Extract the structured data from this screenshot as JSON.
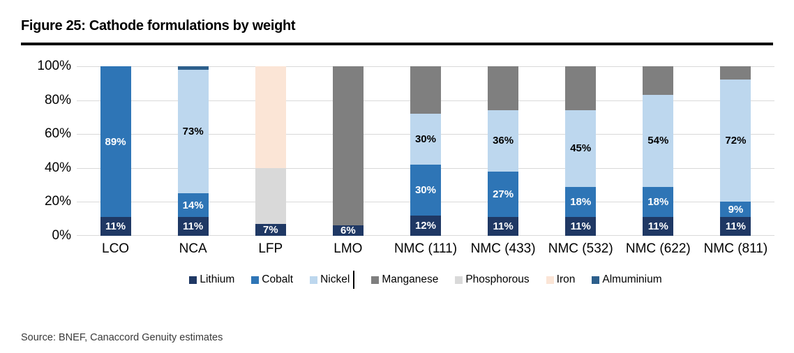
{
  "figure": {
    "title": "Figure 25: Cathode formulations by weight",
    "source": "Source: BNEF, Canaccord Genuity estimates"
  },
  "palette": {
    "lithium": "#1F3864",
    "cobalt": "#2E75B6",
    "nickel": "#BDD7EE",
    "manganese": "#7F7F7F",
    "phosphorous": "#D9D9D9",
    "iron": "#FBE5D6",
    "almuminium": "#2D5F8C",
    "gridline": "#D9D9D9",
    "title_rule": "#000000"
  },
  "legend": {
    "items": [
      {
        "label": "Lithium",
        "color": "lithium"
      },
      {
        "label": "Cobalt",
        "color": "cobalt"
      },
      {
        "label": "Nickel",
        "color": "nickel",
        "text_cursor_after": true
      },
      {
        "label": "Manganese",
        "color": "manganese"
      },
      {
        "label": "Phosphorous",
        "color": "phosphorous"
      },
      {
        "label": "Iron",
        "color": "iron"
      },
      {
        "label": "Almuminium",
        "color": "almuminium"
      }
    ]
  },
  "chart_data": {
    "type": "bar",
    "stacked": true,
    "unit": "%",
    "categories": [
      "LCO",
      "NCA",
      "LFP",
      "LMO",
      "NMC (111)",
      "NMC (433)",
      "NMC (532)",
      "NMC (622)",
      "NMC (811)"
    ],
    "series": [
      {
        "name": "Lithium",
        "color": "lithium",
        "values": [
          11,
          11,
          7,
          6,
          12,
          11,
          11,
          11,
          11
        ],
        "data_labels": true,
        "label_color": "#FFFFFF"
      },
      {
        "name": "Cobalt",
        "color": "cobalt",
        "values": [
          89,
          14,
          0,
          0,
          30,
          27,
          18,
          18,
          9
        ],
        "data_labels": true,
        "label_color": "#FFFFFF"
      },
      {
        "name": "Nickel",
        "color": "nickel",
        "values": [
          0,
          73,
          0,
          0,
          30,
          36,
          45,
          54,
          72
        ],
        "data_labels": true,
        "label_color": "#000000"
      },
      {
        "name": "Manganese",
        "color": "manganese",
        "values": [
          0,
          0,
          0,
          94,
          28,
          26,
          26,
          17,
          8
        ],
        "data_labels": false,
        "label_color": "#000000"
      },
      {
        "name": "Phosphorous",
        "color": "phosphorous",
        "values": [
          0,
          0,
          33,
          0,
          0,
          0,
          0,
          0,
          0
        ],
        "data_labels": false,
        "label_color": "#000000"
      },
      {
        "name": "Iron",
        "color": "iron",
        "values": [
          0,
          0,
          60,
          0,
          0,
          0,
          0,
          0,
          0
        ],
        "data_labels": false,
        "label_color": "#000000"
      },
      {
        "name": "Almuminium",
        "color": "almuminium",
        "values": [
          0,
          2,
          0,
          0,
          0,
          0,
          0,
          0,
          0
        ],
        "data_labels": false,
        "label_color": "#FFFFFF"
      }
    ],
    "y_axis": {
      "min": 0,
      "max": 100,
      "tick_step": 20,
      "ticks": [
        "0%",
        "20%",
        "40%",
        "60%",
        "80%",
        "100%"
      ],
      "gridlines": true
    },
    "legend_position": "bottom",
    "data_label_format": "{value}%"
  }
}
